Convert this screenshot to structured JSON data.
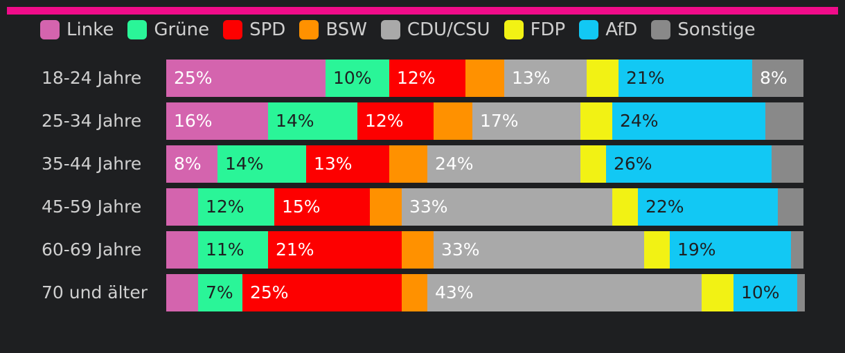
{
  "accent_color": "#f00c8a",
  "chart_data": {
    "type": "bar",
    "stacked": true,
    "orientation": "horizontal",
    "xlim": [
      0,
      100
    ],
    "legend_position": "top",
    "categories": [
      "18-24 Jahre",
      "25-34 Jahre",
      "35-44 Jahre",
      "45-59 Jahre",
      "60-69 Jahre",
      "70 und älter"
    ],
    "series": [
      {
        "name": "Linke",
        "color": "#d464ae",
        "text_color": "#ffffff",
        "values": [
          25,
          16,
          8,
          5,
          5,
          5
        ]
      },
      {
        "name": "Grüne",
        "color": "#2af598",
        "text_color": "#1e1f21",
        "values": [
          10,
          14,
          14,
          12,
          11,
          7
        ]
      },
      {
        "name": "SPD",
        "color": "#fd0000",
        "text_color": "#ffffff",
        "values": [
          12,
          12,
          13,
          15,
          21,
          25
        ]
      },
      {
        "name": "BSW",
        "color": "#ff9100",
        "text_color": "#1e1f21",
        "values": [
          6,
          6,
          6,
          5,
          5,
          4
        ]
      },
      {
        "name": "CDU/CSU",
        "color": "#a9a9a9",
        "text_color": "#ffffff",
        "values": [
          13,
          17,
          24,
          33,
          33,
          43
        ]
      },
      {
        "name": "FDP",
        "color": "#f2f214",
        "text_color": "#1e1f21",
        "values": [
          5,
          5,
          4,
          4,
          4,
          5
        ]
      },
      {
        "name": "AfD",
        "color": "#12c8f4",
        "text_color": "#1e1f21",
        "values": [
          21,
          24,
          26,
          22,
          19,
          10
        ]
      },
      {
        "name": "Sonstige",
        "color": "#898989",
        "text_color": "#ffffff",
        "values": [
          8,
          6,
          5,
          4,
          2,
          1
        ]
      }
    ],
    "data_labels": [
      [
        "25%",
        "10%",
        "12%",
        "",
        "13%",
        "",
        "21%",
        "8%"
      ],
      [
        "16%",
        "14%",
        "12%",
        "",
        "17%",
        "",
        "24%",
        ""
      ],
      [
        "8%",
        "14%",
        "13%",
        "",
        "24%",
        "",
        "26%",
        ""
      ],
      [
        "",
        "12%",
        "15%",
        "",
        "33%",
        "",
        "22%",
        ""
      ],
      [
        "",
        "11%",
        "21%",
        "",
        "33%",
        "",
        "19%",
        ""
      ],
      [
        "",
        "7%",
        "25%",
        "",
        "43%",
        "",
        "10%",
        ""
      ]
    ]
  }
}
